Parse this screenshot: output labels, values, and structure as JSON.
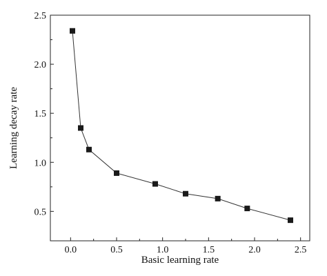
{
  "chart_data": {
    "type": "line",
    "title": "",
    "xlabel": "Basic learning rate",
    "ylabel": "Learning decay rate",
    "xlim": [
      -0.22,
      2.6
    ],
    "ylim": [
      0.2,
      2.5
    ],
    "xticks": [
      0.0,
      0.5,
      1.0,
      1.5,
      2.0,
      2.5
    ],
    "yticks": [
      0.5,
      1.0,
      1.5,
      2.0,
      2.5
    ],
    "xtick_labels": [
      "0.0",
      "0.5",
      "1.0",
      "1.5",
      "2.0",
      "2.5"
    ],
    "ytick_labels": [
      "0.5",
      "1.0",
      "1.5",
      "2.0",
      "2.5"
    ],
    "grid": false,
    "legend": "none",
    "marker": "square",
    "color": "#1a1a1a",
    "series": [
      {
        "x": [
          0.02,
          0.11,
          0.2,
          0.5,
          0.92,
          1.25,
          1.6,
          1.92,
          2.39
        ],
        "y": [
          2.34,
          1.35,
          1.13,
          0.89,
          0.78,
          0.68,
          0.63,
          0.53,
          0.41
        ]
      }
    ]
  }
}
